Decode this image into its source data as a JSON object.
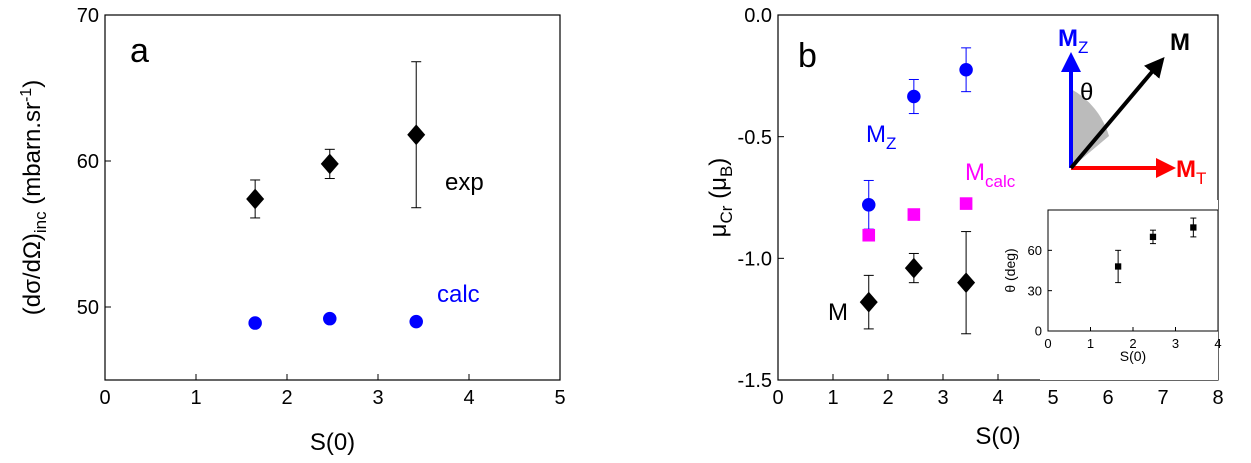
{
  "colors": {
    "exp": "#000000",
    "calc": "#0000ff",
    "mcalc": "#ff00ff",
    "arrow_z": "#0000ff",
    "arrow_t": "#ff0000",
    "axis": "#000000",
    "cone": "#bbbbbb"
  },
  "chart_data": [
    {
      "type": "scatter",
      "panel_label": "a",
      "xlabel": "S(0)",
      "ylabel": {
        "main": "(dσ/dΩ)",
        "sub": "inc",
        "unit": " (mbarn.sr",
        "sup": "-1",
        "close": ")"
      },
      "xlim": [
        0,
        5
      ],
      "ylim": [
        45,
        70
      ],
      "x_ticks": [
        0,
        1,
        2,
        3,
        4,
        5
      ],
      "y_ticks": [
        50,
        60,
        70
      ],
      "x_tick_labels": [
        "0",
        "1",
        "2",
        "3",
        "4",
        "5"
      ],
      "y_tick_labels": [
        "50",
        "60",
        "70"
      ],
      "series": [
        {
          "name": "exp",
          "marker": "diamond",
          "color": "#000000",
          "x": [
            1.65,
            2.47,
            3.42
          ],
          "y": [
            57.4,
            59.8,
            61.8
          ],
          "err": [
            1.3,
            1.0,
            5.0
          ]
        },
        {
          "name": "calc",
          "marker": "circle",
          "color": "#0000ff",
          "x": [
            1.65,
            2.47,
            3.42
          ],
          "y": [
            48.9,
            49.2,
            49.0
          ]
        }
      ]
    },
    {
      "type": "scatter",
      "panel_label": "b",
      "xlabel": "S(0)",
      "ylabel": {
        "mu": "μ",
        "sub1": "Cr",
        "mid": " (μ",
        "sub2": "B",
        "close": ")"
      },
      "xlim": [
        0,
        8
      ],
      "ylim": [
        -1.5,
        0.0
      ],
      "x_ticks": [
        0,
        1,
        2,
        3,
        4,
        5,
        6,
        7,
        8
      ],
      "y_ticks": [
        -1.5,
        -1.0,
        -0.5,
        0.0
      ],
      "x_tick_labels": [
        "0",
        "1",
        "2",
        "3",
        "4",
        "5",
        "6",
        "7",
        "8"
      ],
      "y_tick_labels": [
        "-1.5",
        "-1.0",
        "-0.5",
        "0.0"
      ],
      "series": [
        {
          "name": "M",
          "label_main": "M",
          "marker": "diamond",
          "color": "#000000",
          "x": [
            1.65,
            2.47,
            3.42
          ],
          "y": [
            -1.18,
            -1.04,
            -1.1
          ],
          "err": [
            0.11,
            0.06,
            0.21
          ]
        },
        {
          "name": "Mz",
          "label_main": "M",
          "label_sub": "Z",
          "marker": "circle",
          "color": "#0000ff",
          "x": [
            1.65,
            2.47,
            3.42
          ],
          "y": [
            -0.78,
            -0.335,
            -0.225
          ],
          "err": [
            0.1,
            0.07,
            0.09
          ]
        },
        {
          "name": "Mcalc",
          "label_main": "M",
          "label_sub": "calc",
          "marker": "square",
          "color": "#ff00ff",
          "x": [
            1.65,
            2.47,
            3.42
          ],
          "y": [
            -0.905,
            -0.82,
            -0.775
          ]
        }
      ],
      "diagram": {
        "mz_main": "M",
        "mz_sub": "Z",
        "m_label": "M",
        "mt_main": "M",
        "mt_sub": "T",
        "theta": "θ"
      },
      "inset": {
        "type": "scatter",
        "xlabel": "S(0)",
        "ylabel": "θ (deg)",
        "xlim": [
          0,
          4
        ],
        "ylim": [
          0,
          90
        ],
        "x_ticks": [
          0,
          1,
          2,
          3,
          4
        ],
        "y_ticks": [
          0,
          30,
          60
        ],
        "x_tick_labels": [
          "0",
          "1",
          "2",
          "3",
          "4"
        ],
        "y_tick_labels": [
          "0",
          "30",
          "60"
        ],
        "series": [
          {
            "marker": "square",
            "color": "#000000",
            "x": [
              1.65,
              2.47,
              3.42
            ],
            "y": [
              48,
              70,
              77
            ],
            "err": [
              12,
              5,
              7
            ]
          }
        ]
      }
    }
  ]
}
